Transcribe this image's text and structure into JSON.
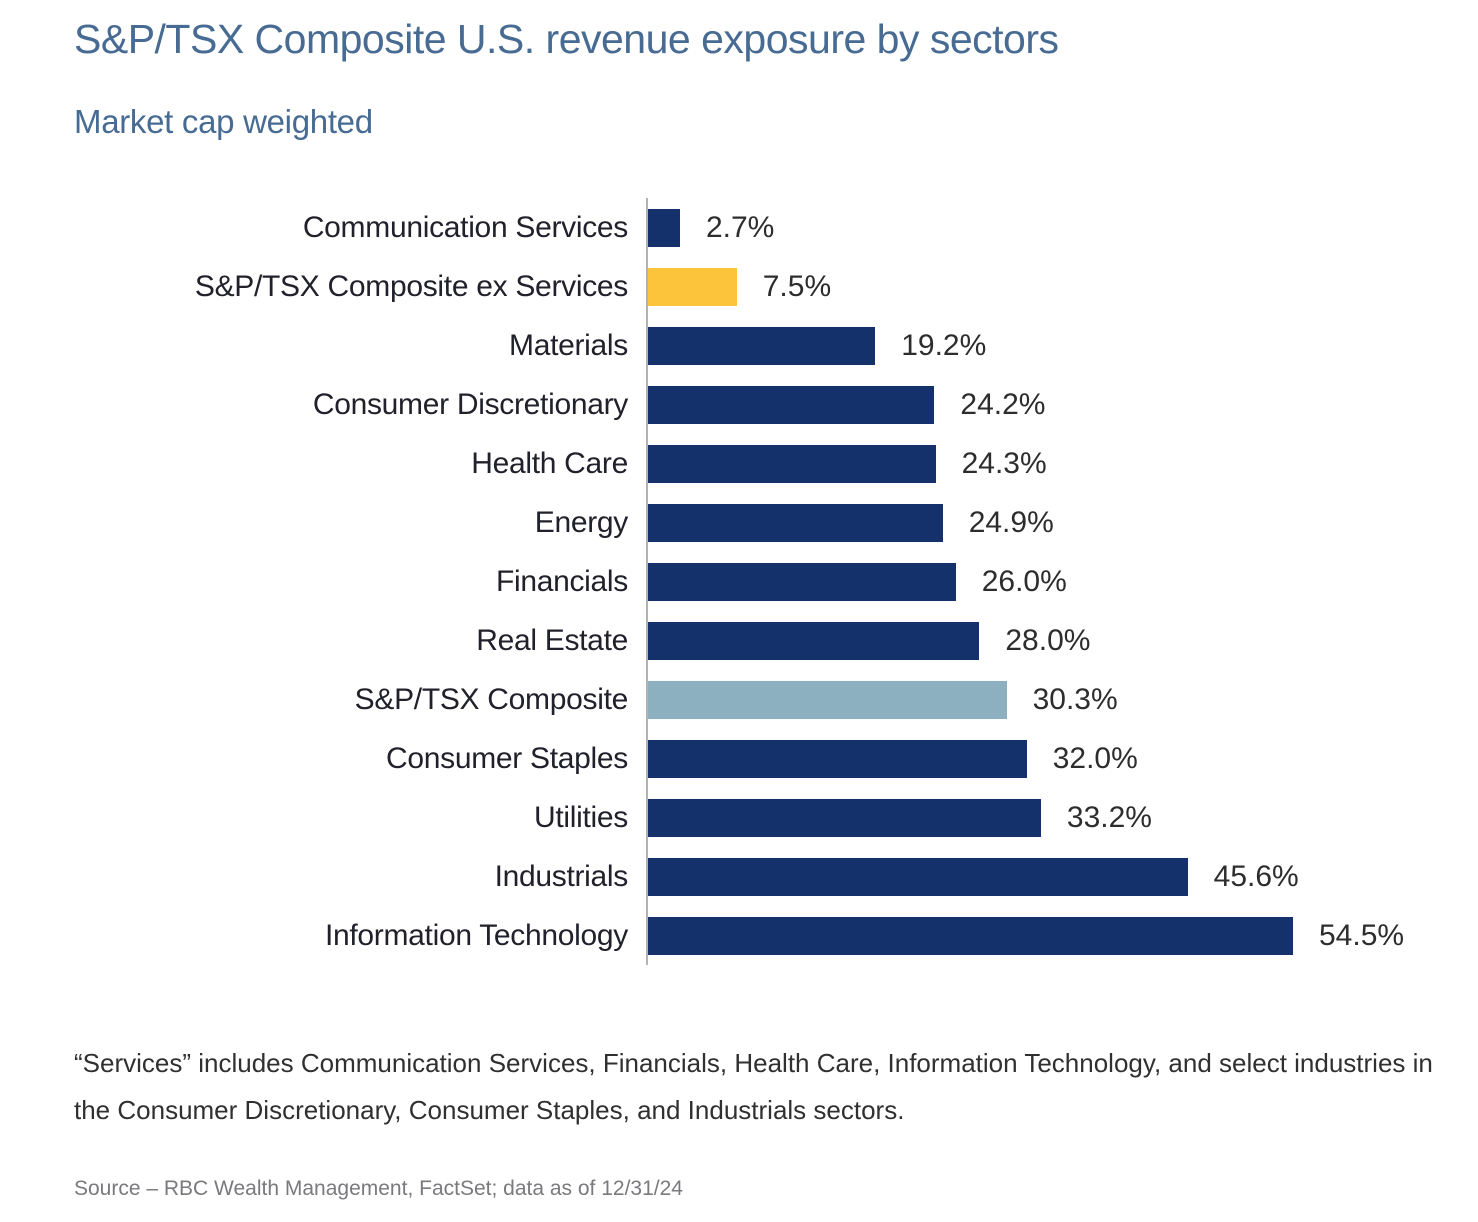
{
  "header": {
    "title": "S&P/TSX Composite U.S. revenue exposure by sectors",
    "subtitle": "Market cap weighted"
  },
  "chart_data": {
    "type": "bar",
    "orientation": "horizontal",
    "title": "S&P/TSX Composite U.S. revenue exposure by sectors",
    "subtitle": "Market cap weighted",
    "xlabel": "",
    "ylabel": "",
    "xlim": [
      0,
      60
    ],
    "grid": false,
    "legend": "none",
    "categories": [
      "Communication Services",
      "S&P/TSX Composite ex Services",
      "Materials",
      "Consumer Discretionary",
      "Health Care",
      "Energy",
      "Financials",
      "Real Estate",
      "S&P/TSX Composite",
      "Consumer Staples",
      "Utilities",
      "Industrials",
      "Information Technology"
    ],
    "values": [
      2.7,
      7.5,
      19.2,
      24.2,
      24.3,
      24.9,
      26.0,
      28.0,
      30.3,
      32.0,
      33.2,
      45.6,
      54.5
    ],
    "value_labels": [
      "2.7%",
      "7.5%",
      "19.2%",
      "24.2%",
      "24.3%",
      "24.9%",
      "26.0%",
      "28.0%",
      "30.3%",
      "32.0%",
      "33.2%",
      "45.6%",
      "54.5%"
    ],
    "bar_colors": [
      "#15316b",
      "#fcc43a",
      "#15316b",
      "#15316b",
      "#15316b",
      "#15316b",
      "#15316b",
      "#15316b",
      "#8cb0bf",
      "#15316b",
      "#15316b",
      "#15316b",
      "#15316b"
    ],
    "colors": {
      "sector_navy": "#15316b",
      "ex_services_gold": "#fcc43a",
      "composite_light_blue": "#8cb0bf",
      "title_blue": "#476b93",
      "axis_gray": "#b3b3b3"
    }
  },
  "footnote": "“Services” includes Communication Services, Financials, Health Care, Information Technology, and select industries in the Consumer Discretionary, Consumer Staples, and Industrials sectors.",
  "source": "Source – RBC Wealth Management, FactSet; data as of 12/31/24"
}
